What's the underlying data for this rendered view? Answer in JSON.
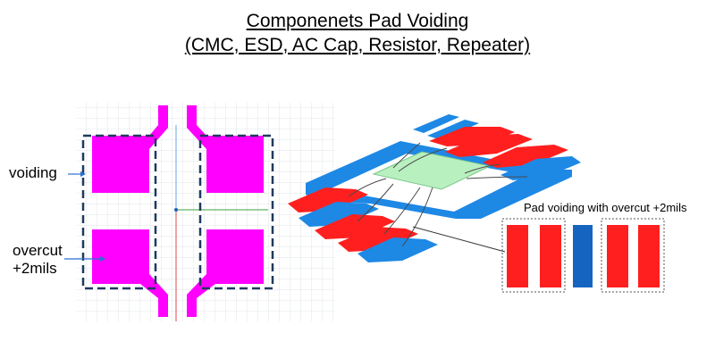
{
  "title": {
    "line1": "Componenets Pad Voiding",
    "line2": "(CMC, ESD, AC Cap, Resistor, Repeater)"
  },
  "left_layout": {
    "voiding_label": "voiding",
    "overcut_label_line1": "overcut",
    "overcut_label_line2": "+2mils"
  },
  "inset": {
    "caption": "Pad voiding with overcut +2mils"
  },
  "colors": {
    "pad_magenta": "#ff00ff",
    "dashed_navy": "#1f3a5f",
    "board_blue": "#1e88e5",
    "component_green": "#b9f0c0",
    "trace_red": "#ff1f1f",
    "inset_blue": "#1565c0"
  }
}
